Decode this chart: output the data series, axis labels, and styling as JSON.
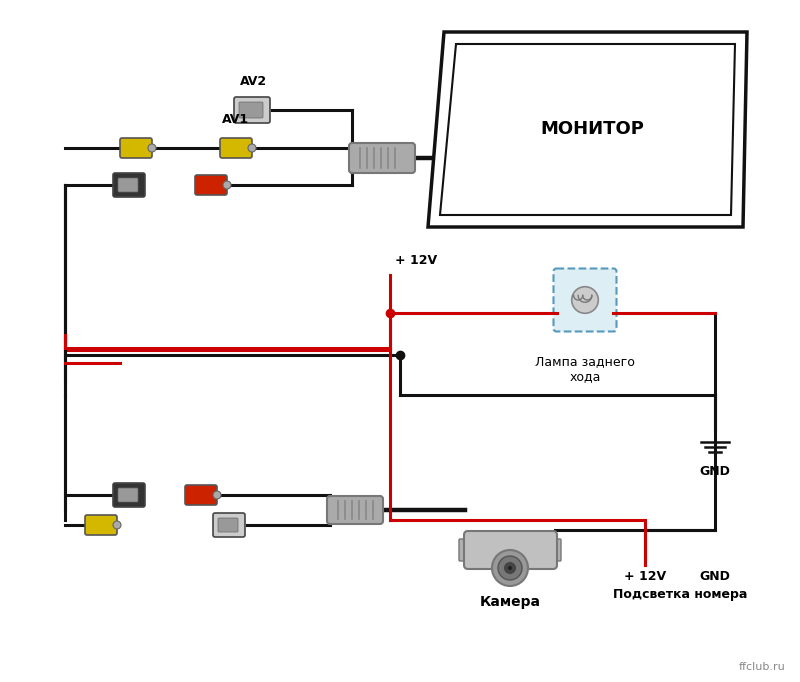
{
  "bg_color": "#ffffff",
  "monitor_label": "МОНИТОР",
  "lamp_label": "Лампа заднего\nхода",
  "gnd_label": "GND",
  "plus12v_label": "+ 12V",
  "camera_label": "Камера",
  "podvetka_label": "Подсветка номера",
  "plus12v2_label": "+ 12V",
  "gnd2_label": "GND",
  "av2_label": "AV2",
  "av1_label": "AV1",
  "ffclub_label": "ffclub.ru",
  "wire_black": "#111111",
  "wire_red": "#cc0000",
  "connector_yellow": "#d4b800",
  "connector_gray": "#aaaaaa",
  "connector_black": "#333333",
  "connector_red": "#cc2200",
  "lamp_box_color": "#b0d8e8"
}
